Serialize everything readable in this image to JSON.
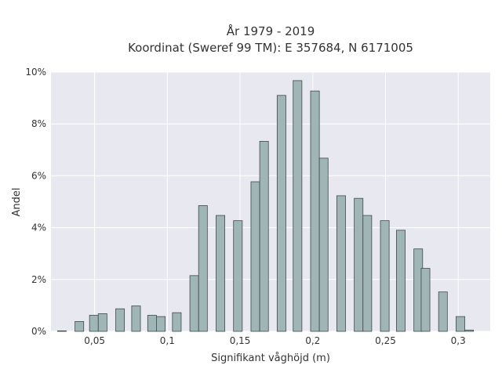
{
  "chart_data": {
    "type": "bar",
    "title": [
      "År 1979 - 2019",
      "Koordinat (Sweref 99 TM): E 357684, N 6171005"
    ],
    "xlabel": "Signifikant våghöjd (m)",
    "ylabel": "Andel",
    "xlim": [
      0.02,
      0.322
    ],
    "ylim": [
      0,
      0.1
    ],
    "x_tick_values": [
      0.05,
      0.1,
      0.15,
      0.2,
      0.25,
      0.3
    ],
    "x_tick_labels": [
      "0,05",
      "0,1",
      "0,15",
      "0,2",
      "0,25",
      "0,3"
    ],
    "y_tick_values": [
      0,
      0.02,
      0.04,
      0.06,
      0.08,
      0.1
    ],
    "y_tick_labels": [
      "0%",
      "2%",
      "4%",
      "6%",
      "8%",
      "10%"
    ],
    "grid": true,
    "bar_width": 0.006,
    "bar_color": "#a0b5b5",
    "bar_edge_color": "#3f4a4a",
    "plot_background": "#e8e8f0",
    "grid_color": "#ffffff",
    "x": [
      0.0275,
      0.0395,
      0.0495,
      0.0555,
      0.0675,
      0.0785,
      0.0895,
      0.0955,
      0.1065,
      0.1185,
      0.1245,
      0.1365,
      0.1485,
      0.1605,
      0.1665,
      0.1785,
      0.1895,
      0.2015,
      0.2075,
      0.2195,
      0.2315,
      0.2375,
      0.2495,
      0.2605,
      0.2725,
      0.2775,
      0.2895,
      0.3015,
      0.3075
    ],
    "values": [
      0.0002,
      0.0038,
      0.0062,
      0.0068,
      0.0087,
      0.0098,
      0.0062,
      0.0057,
      0.0072,
      0.0215,
      0.0485,
      0.0447,
      0.0427,
      0.0577,
      0.0733,
      0.091,
      0.0967,
      0.0927,
      0.0668,
      0.0523,
      0.0513,
      0.0447,
      0.0427,
      0.039,
      0.0318,
      0.0243,
      0.0152,
      0.0057,
      0.0005
    ]
  }
}
